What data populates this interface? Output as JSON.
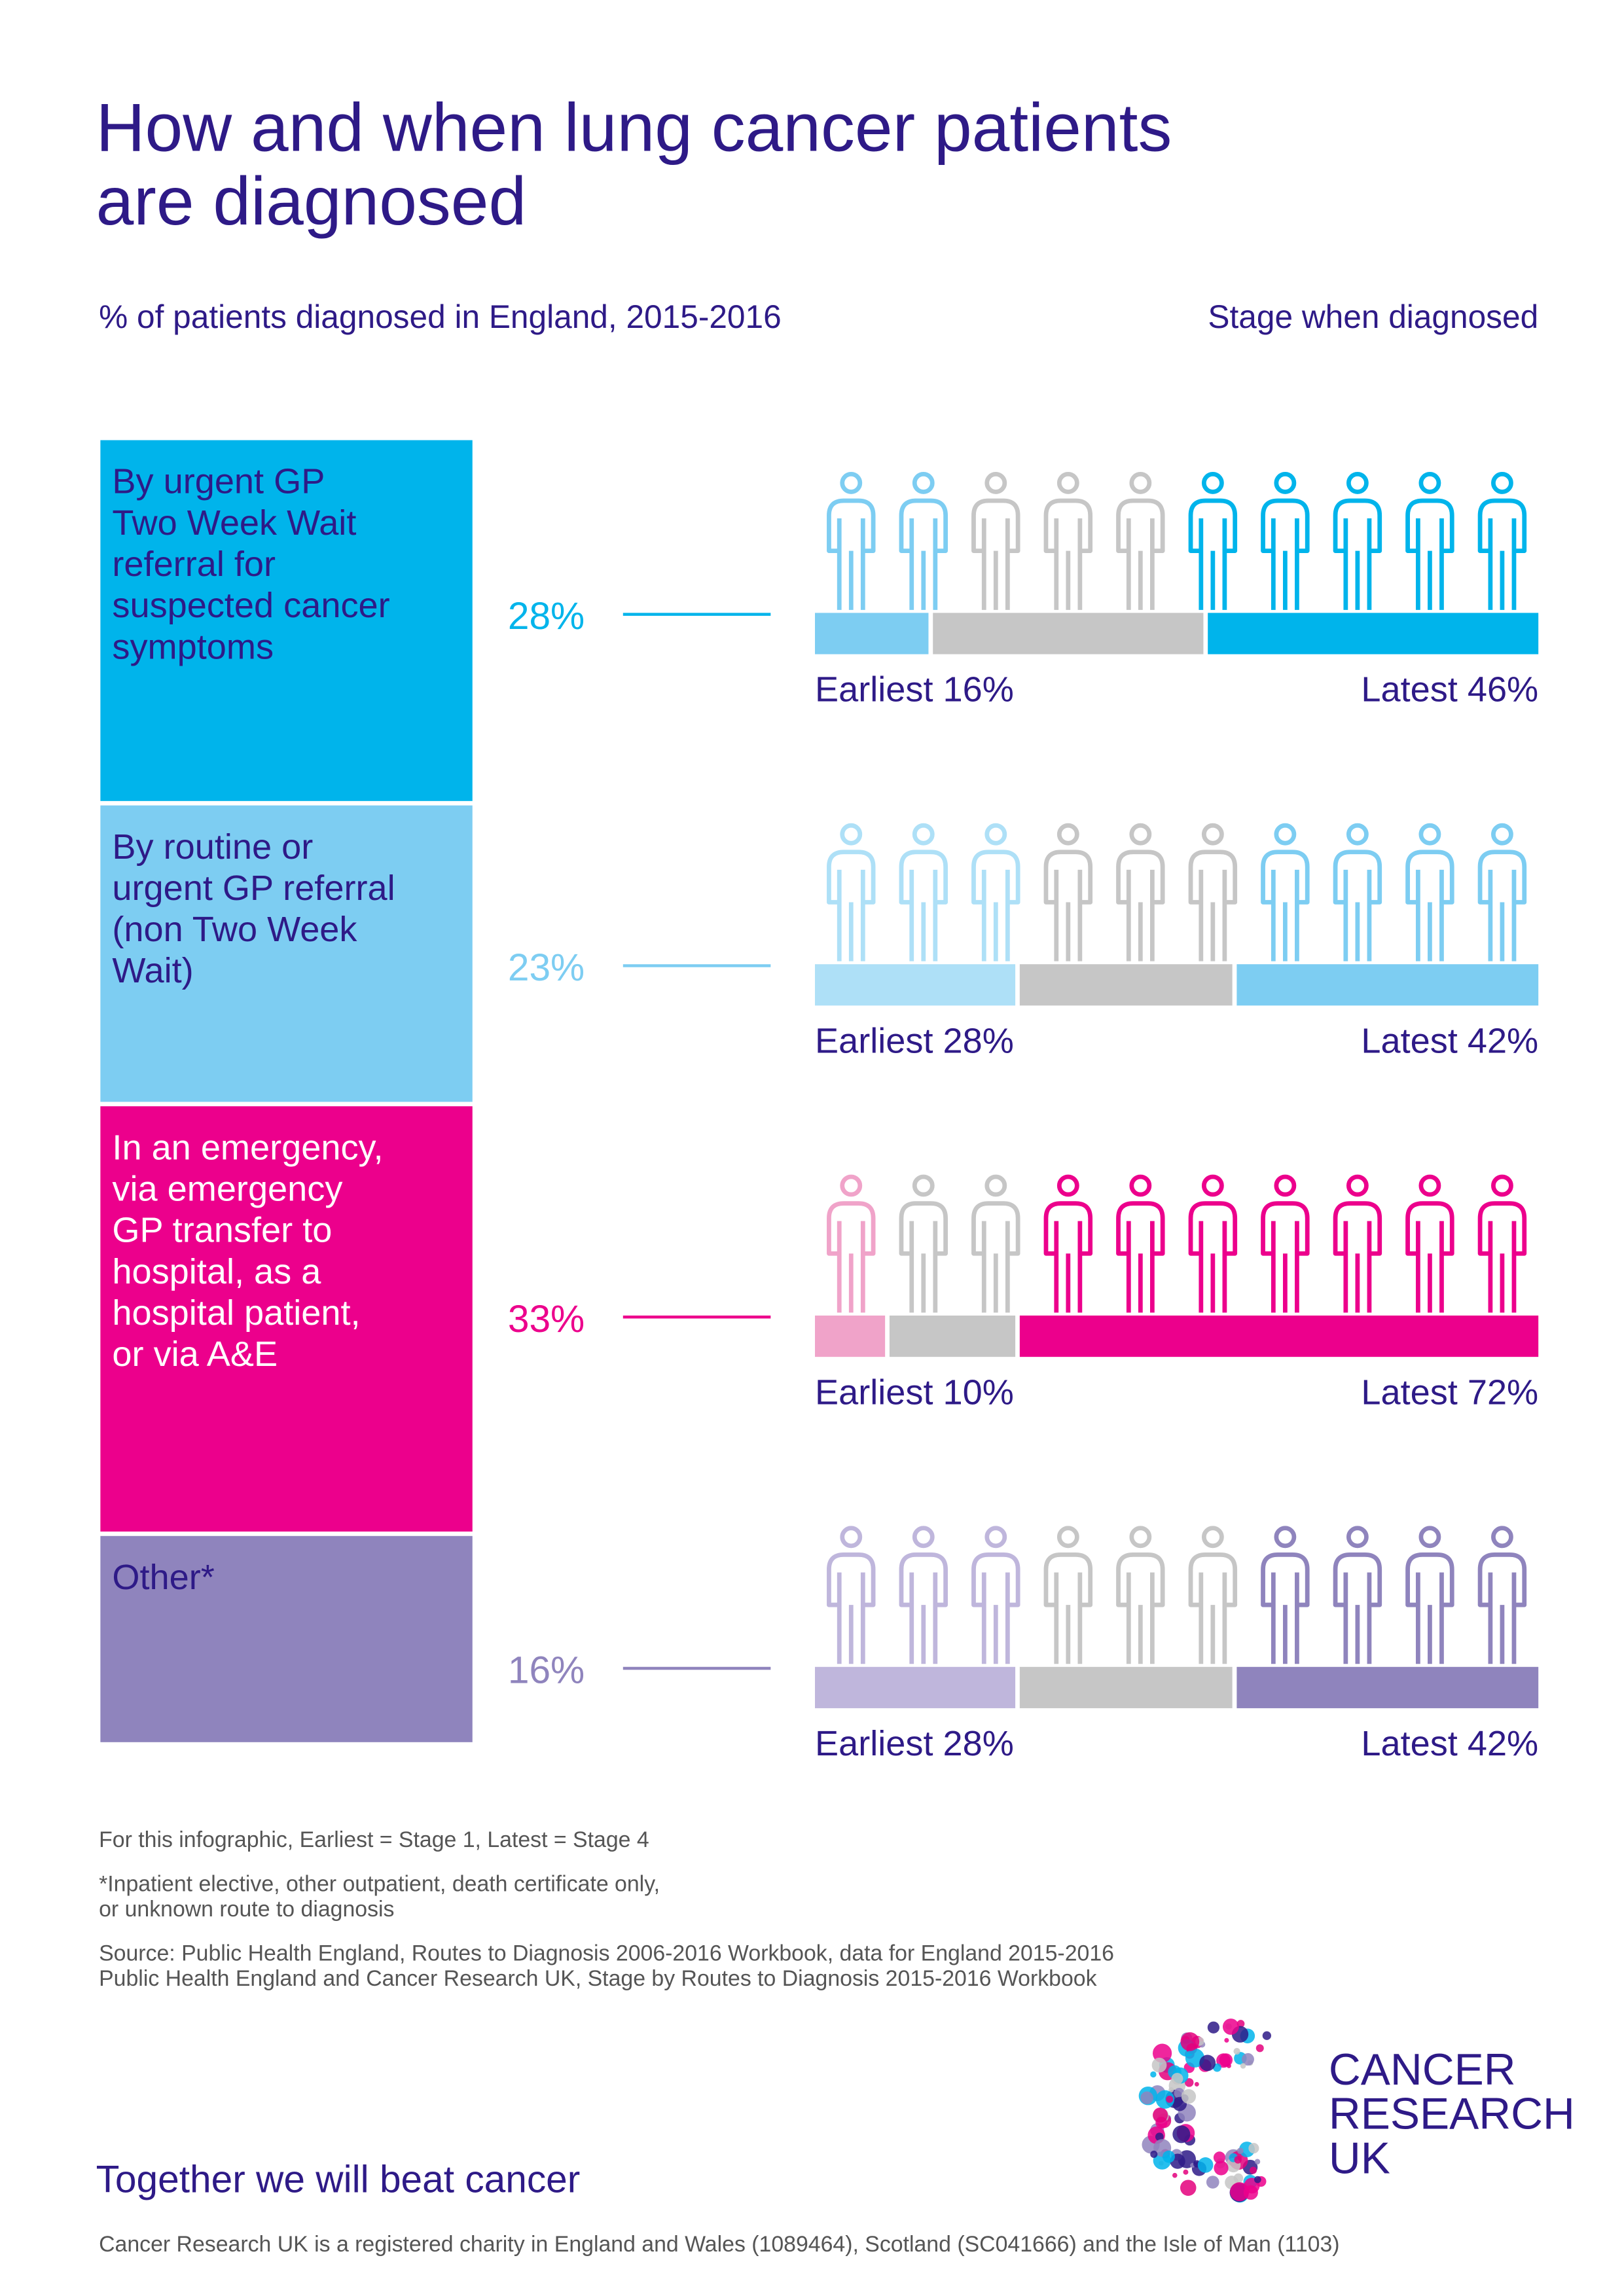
{
  "title_lines": [
    "How and when lung cancer patients",
    "are diagnosed"
  ],
  "subtitle": "% of patients diagnosed in England, 2015-2016",
  "stage_heading": "Stage when diagnosed",
  "stage_grey": "#c6c6c6",
  "routes": [
    {
      "label_lines": [
        "By urgent GP",
        "Two Week Wait",
        "referral for",
        "suspected cancer",
        "symptoms"
      ],
      "share": 28,
      "share_label": "28%",
      "earliest": 16,
      "earliest_label": "Earliest 16%",
      "latest": 46,
      "latest_label": "Latest 46%",
      "color": "#00b4eb",
      "light_color": "#7dcdf2",
      "text_color": "#2e1a87"
    },
    {
      "label_lines": [
        "By routine or",
        "urgent GP referral",
        "(non Two Week",
        "Wait)"
      ],
      "share": 23,
      "share_label": "23%",
      "earliest": 28,
      "earliest_label": "Earliest 28%",
      "latest": 42,
      "latest_label": "Latest 42%",
      "color": "#7dcdf2",
      "light_color": "#aee0f7",
      "text_color": "#2e1a87"
    },
    {
      "label_lines": [
        "In an emergency,",
        "via emergency",
        "GP transfer to",
        "hospital, as a",
        "hospital patient,",
        "or via A&E"
      ],
      "share": 33,
      "share_label": "33%",
      "earliest": 10,
      "earliest_label": "Earliest 10%",
      "latest": 72,
      "latest_label": "Latest 72%",
      "color": "#ec008c",
      "light_color": "#f0a3c9",
      "text_color": "#ffffff"
    },
    {
      "label_lines": [
        "Other*"
      ],
      "share": 16,
      "share_label": "16%",
      "earliest": 28,
      "earliest_label": "Earliest 28%",
      "latest": 42,
      "latest_label": "Latest 42%",
      "color": "#8f84bd",
      "light_color": "#bfb6dc",
      "text_color": "#2e1a87"
    }
  ],
  "notes": [
    "For this infographic, Earliest = Stage 1, Latest = Stage 4",
    "*Inpatient elective, other outpatient, death certificate only,",
    "or unknown route to diagnosis",
    "Source: Public Health England, Routes to Diagnosis 2006-2016 Workbook, data for England 2015-2016",
    "Public Health England and Cancer Research UK, Stage by Routes to Diagnosis 2015-2016 Workbook"
  ],
  "logo_lines": [
    "CANCER",
    "RESEARCH",
    "UK"
  ],
  "tagline": "Together we will beat cancer",
  "charity": "Cancer Research UK is a registered charity in England and Wales (1089464), Scotland (SC041666) and the Isle of Man (1103)"
}
